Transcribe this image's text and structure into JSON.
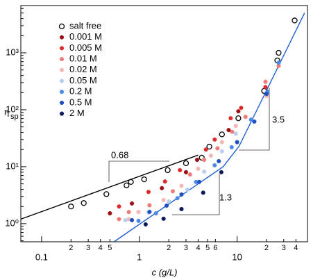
{
  "chart_data": {
    "type": "scatter",
    "x_label": "c (g/L)",
    "y_label": "η",
    "y_label_sub": "sp",
    "log_x": true,
    "log_y": true,
    "xlim": [
      0.0613,
      52.5
    ],
    "ylim": [
      0.48,
      6760
    ],
    "xticks": [
      {
        "value": 0.1,
        "label": "0.1"
      },
      {
        "value": 0.2,
        "label": "2"
      },
      {
        "value": 0.3,
        "label": "3"
      },
      {
        "value": 0.4,
        "label": "4"
      },
      {
        "value": 0.5,
        "label": "5"
      },
      1,
      {
        "value": 2,
        "label": "2"
      },
      {
        "value": 3,
        "label": "3"
      },
      {
        "value": 4,
        "label": "4"
      },
      {
        "value": 5,
        "label": "5"
      },
      {
        "value": 6,
        "label": "6"
      },
      10,
      {
        "value": 20,
        "label": "2"
      },
      {
        "value": 30,
        "label": "3"
      },
      {
        "value": 40,
        "label": "4"
      }
    ],
    "yticks": [
      {
        "value": 1,
        "label": "10⁰"
      },
      {
        "value": 10,
        "label": "10¹"
      },
      {
        "value": 100,
        "label": "10²"
      },
      {
        "value": 1000,
        "label": "10³"
      }
    ],
    "series": [
      {
        "name": "salt free",
        "color": "#000000",
        "open": true,
        "x": [
          0.2,
          0.27,
          0.46,
          0.74,
          0.82,
          1.12,
          1.95,
          3.0,
          4.35,
          5.2,
          7.0,
          10.3,
          18.9,
          25.8,
          26.6,
          38.8
        ],
        "values": [
          2.0,
          2.3,
          3.3,
          4.7,
          5.4,
          6.0,
          8.7,
          11.5,
          14.4,
          22.5,
          37,
          71,
          214,
          735,
          1000,
          3700
        ]
      },
      {
        "name": "0.001 M",
        "color": "#9e0f14",
        "x": [
          0.5,
          0.84,
          1.7,
          3.0,
          3.9,
          8.2,
          10.3
        ],
        "values": [
          1.52,
          2.26,
          4.2,
          8.0,
          13.2,
          44,
          94
        ]
      },
      {
        "name": "0.005 M",
        "color": "#e02a2a",
        "x": [
          0.62,
          1.24,
          1.83,
          2.6,
          4.8,
          5.9,
          8.6,
          11,
          19.5
        ],
        "values": [
          2.0,
          3.6,
          5.5,
          8.7,
          20,
          30,
          71,
          108,
          250
        ]
      },
      {
        "name": "0.01 M",
        "color": "#ee7b78",
        "x": [
          0.62,
          0.78,
          1.27,
          2.2,
          3.3,
          4.6,
          6.3,
          8.9,
          12.2,
          19.5,
          26.6
        ],
        "values": [
          1.2,
          1.6,
          2.1,
          3.7,
          7.3,
          13.2,
          21,
          41,
          75,
          310,
          590
        ]
      },
      {
        "name": "0.02 M",
        "color": "#f5b8b4",
        "x": [
          0.78,
          0.98,
          1.77,
          2.7,
          4.0,
          5.4,
          7.0,
          9.7,
          20
        ],
        "values": [
          1.2,
          1.6,
          2.6,
          4.6,
          9.2,
          15.6,
          27,
          52,
          175
        ]
      },
      {
        "name": "0.05 M",
        "color": "#b9cdf0",
        "x": [
          0.72,
          1.24,
          2.0,
          3.1,
          4.6,
          7.0,
          9.7
        ],
        "values": [
          1.15,
          1.57,
          2.45,
          3.95,
          8.2,
          18.6,
          38
        ]
      },
      {
        "name": "0.2 M",
        "color": "#4d8ae8",
        "x": [
          0.98,
          1.48,
          2.45,
          3.8,
          5.9,
          8.8,
          13.9,
          20.5,
          26.6
        ],
        "values": [
          1.12,
          1.52,
          2.8,
          5.4,
          10.6,
          22,
          67,
          207,
          670
        ]
      },
      {
        "name": "0.5 M",
        "color": "#1f4fc4",
        "x": [
          0.84,
          1.27,
          1.9,
          2.7,
          4.1,
          6.5,
          10,
          15,
          20
        ],
        "values": [
          1.15,
          1.61,
          2.07,
          3.25,
          5.4,
          12.5,
          27,
          62,
          190
        ]
      },
      {
        "name": "2 M",
        "color": "#0b1a5c",
        "x": [
          1.16,
          1.77,
          2.7,
          4.5,
          6.9
        ],
        "values": [
          0.97,
          1.22,
          1.8,
          3.5,
          8.0
        ]
      }
    ],
    "fit_lines": [
      {
        "color": "#000000",
        "x": [
          0.0613,
          4.0
        ],
        "values": [
          1.2,
          16
        ]
      },
      {
        "color": "#1f5fd0",
        "x": [
          0.55,
          7.2,
          10.5,
          49
        ],
        "values": [
          0.48,
          10,
          23,
          5000
        ]
      }
    ],
    "annotations": [
      "0.68",
      "1.3",
      "3.5"
    ]
  }
}
